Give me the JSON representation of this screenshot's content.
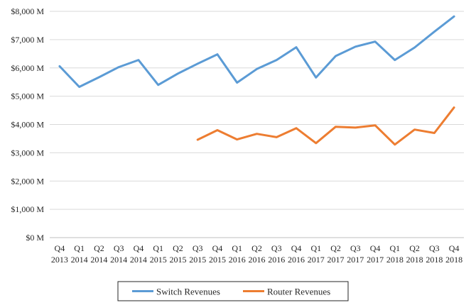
{
  "chart_data": {
    "type": "line",
    "title": "",
    "xlabel": "",
    "ylabel": "",
    "categories": [
      [
        "Q4",
        "2013"
      ],
      [
        "Q1",
        "2014"
      ],
      [
        "Q2",
        "2014"
      ],
      [
        "Q3",
        "2014"
      ],
      [
        "Q4",
        "2014"
      ],
      [
        "Q1",
        "2015"
      ],
      [
        "Q2",
        "2015"
      ],
      [
        "Q3",
        "2015"
      ],
      [
        "Q4",
        "2015"
      ],
      [
        "Q1",
        "2016"
      ],
      [
        "Q2",
        "2016"
      ],
      [
        "Q3",
        "2016"
      ],
      [
        "Q4",
        "2016"
      ],
      [
        "Q1",
        "2017"
      ],
      [
        "Q2",
        "2017"
      ],
      [
        "Q3",
        "2017"
      ],
      [
        "Q4",
        "2017"
      ],
      [
        "Q1",
        "2018"
      ],
      [
        "Q2",
        "2018"
      ],
      [
        "Q3",
        "2018"
      ],
      [
        "Q4",
        "2018"
      ]
    ],
    "ylim": [
      0,
      8000
    ],
    "yticks": [
      0,
      1000,
      2000,
      3000,
      4000,
      5000,
      6000,
      7000,
      8000
    ],
    "ytick_labels": [
      "$0 M",
      "$1,000 M",
      "$2,000 M",
      "$3,000 M",
      "$4,000 M",
      "$5,000 M",
      "$6,000 M",
      "$7,000 M",
      "$8,000 M"
    ],
    "grid": true,
    "legend_position": "bottom",
    "series": [
      {
        "name": "Switch Revenues",
        "color": "#5b9bd5",
        "values": [
          6060,
          5330,
          5670,
          6030,
          6280,
          5400,
          5800,
          6150,
          6480,
          5480,
          5960,
          6280,
          6730,
          5660,
          6420,
          6750,
          6930,
          6280,
          6720,
          7280,
          7820
        ]
      },
      {
        "name": "Router Revenues",
        "color": "#ed7d31",
        "values": [
          null,
          null,
          null,
          null,
          null,
          null,
          null,
          3460,
          3800,
          3470,
          3670,
          3550,
          3870,
          3340,
          3920,
          3890,
          3970,
          3290,
          3820,
          3700,
          4600
        ]
      }
    ]
  }
}
